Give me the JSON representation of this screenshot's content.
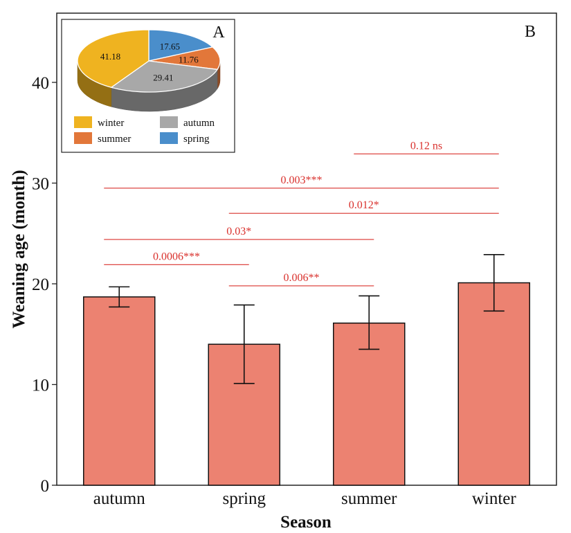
{
  "chart_data": [
    {
      "type": "bar",
      "panel_label": "B",
      "xlabel": "Season",
      "ylabel": "Weaning age (month)",
      "categories": [
        "autumn",
        "spring",
        "summer",
        "winter"
      ],
      "values": [
        18.7,
        14.0,
        16.1,
        20.1
      ],
      "error_low": [
        17.7,
        10.1,
        13.5,
        17.3
      ],
      "error_high": [
        19.7,
        17.9,
        18.8,
        22.9
      ],
      "yticks": [
        0,
        10,
        20,
        30,
        40
      ],
      "ylim": [
        0,
        47
      ],
      "colors": {
        "bar": "#ec8271",
        "annotation": "#d9302c"
      },
      "comparisons": [
        {
          "label": "0.12 ns",
          "from": "summer",
          "to": "winter",
          "y": 32.9
        },
        {
          "label": "0.003***",
          "from": "autumn",
          "to": "winter",
          "y": 29.5
        },
        {
          "label": "0.012*",
          "from": "spring",
          "to": "winter",
          "y": 27.0
        },
        {
          "label": "0.03*",
          "from": "autumn",
          "to": "summer",
          "y": 24.4
        },
        {
          "label": "0.0006***",
          "from": "autumn",
          "to": "spring",
          "y": 21.9
        },
        {
          "label": "0.006**",
          "from": "spring",
          "to": "summer",
          "y": 19.8
        }
      ]
    },
    {
      "type": "pie",
      "panel_label": "A",
      "slices": [
        {
          "name": "spring",
          "value": 17.65,
          "label": "17.65",
          "color": "#4a8ecb"
        },
        {
          "name": "summer",
          "value": 11.76,
          "label": "11.76",
          "color": "#e2773a"
        },
        {
          "name": "autumn",
          "value": 29.41,
          "label": "29.41",
          "color": "#a8a8a8"
        },
        {
          "name": "winter",
          "value": 41.18,
          "label": "41.18",
          "color": "#efb320"
        }
      ],
      "legend": [
        {
          "name": "winter",
          "label": "winter",
          "color": "#efb320"
        },
        {
          "name": "autumn",
          "label": "autumn",
          "color": "#a8a8a8"
        },
        {
          "name": "summer",
          "label": "summer",
          "color": "#e2773a"
        },
        {
          "name": "spring",
          "label": "spring",
          "color": "#4a8ecb"
        }
      ]
    }
  ]
}
